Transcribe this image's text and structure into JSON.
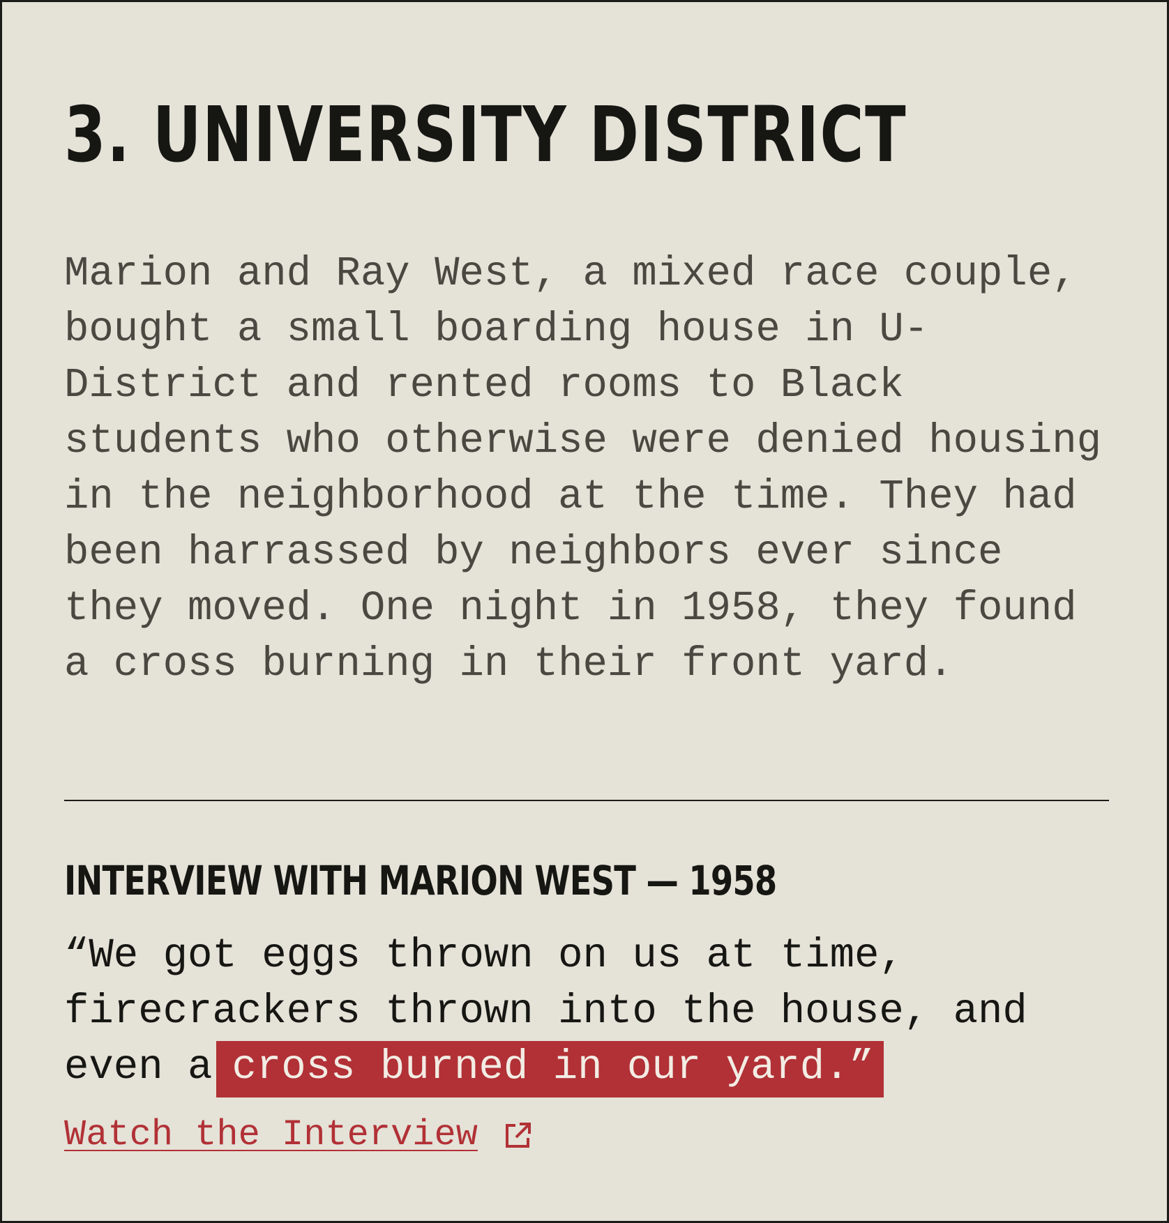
{
  "section": {
    "title": "3. UNIVERSITY DISTRICT",
    "body": "Marion and Ray West, a mixed race couple, bought a small boarding house in U-District and rented rooms to Black students who otherwise were denied housing in the neighborhood at the time. They had been harrassed by neighbors ever since they moved. One night in 1958, they found a cross burning in their front yard."
  },
  "interview": {
    "heading": "INTERVIEW WITH MARION WEST — 1958",
    "quote_before": "“We got eggs thrown on us at time, firecrackers thrown into the house, and even a",
    "quote_highlight": "cross burned in our yard.”",
    "link_label": "Watch the Interview",
    "link_icon": "external-link-icon"
  },
  "colors": {
    "background": "#e5e2d8",
    "heading": "#161613",
    "body_text": "#4a4840",
    "accent_red": "#b13136"
  }
}
